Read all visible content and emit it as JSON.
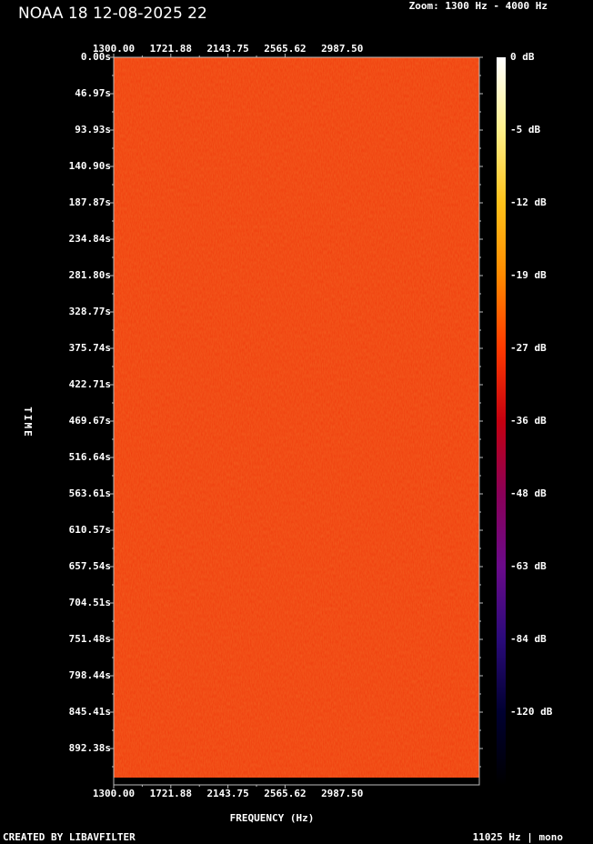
{
  "header": {
    "title": "NOAA 18 12-08-2025 22",
    "zoom": "Zoom: 1300 Hz - 4000 Hz"
  },
  "footer": {
    "credit": "CREATED BY LIBAVFILTER",
    "sample_info": "11025 Hz | mono"
  },
  "chart_data": {
    "type": "heatmap",
    "title": "NOAA 18 12-08-2025 22",
    "xlabel": "FREQUENCY (Hz)",
    "ylabel": "TIME",
    "xlim": [
      1300,
      4000
    ],
    "x_ticks": [
      "1300.00",
      "1721.88",
      "2143.75",
      "2565.62",
      "2987.50"
    ],
    "y_ticks": [
      "0.00s",
      "46.97s",
      "93.93s",
      "140.90s",
      "187.87s",
      "234.84s",
      "281.80s",
      "328.77s",
      "375.74s",
      "422.71s",
      "469.67s",
      "516.64s",
      "563.61s",
      "610.57s",
      "657.54s",
      "704.51s",
      "751.48s",
      "798.44s",
      "845.41s",
      "892.38s"
    ],
    "colorbar_labels": [
      "0 dB",
      "-5 dB",
      "-12 dB",
      "-19 dB",
      "-27 dB",
      "-36 dB",
      "-48 dB",
      "-63 dB",
      "-84 dB",
      "-120 dB"
    ],
    "colorbar_colors": [
      "#ffffff",
      "#fff08a",
      "#ffc21a",
      "#ff8a00",
      "#ff3a00",
      "#c40010",
      "#8a0058",
      "#6a0a8a",
      "#2a0a7a",
      "#000030",
      "#000000"
    ],
    "fill_color": "#f0400f",
    "description_level_dB": -22
  }
}
